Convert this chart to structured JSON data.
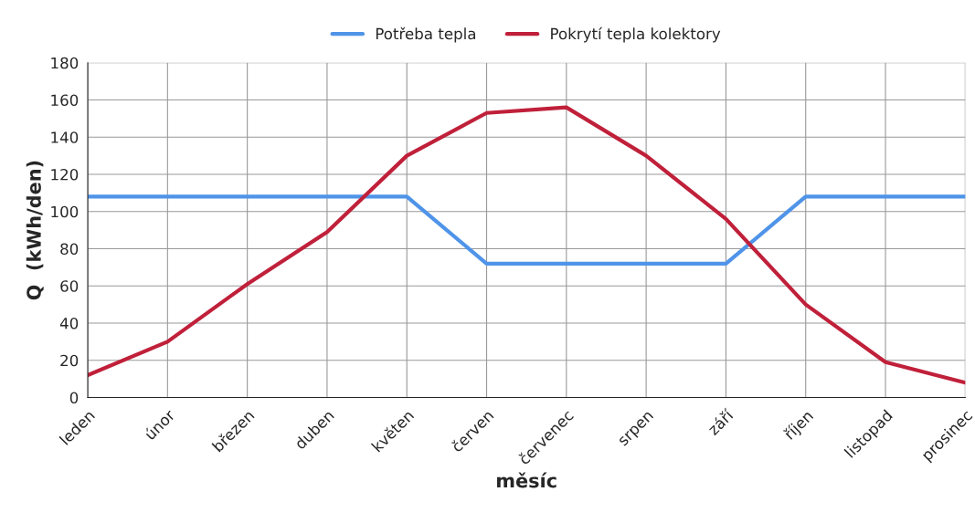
{
  "chart_data": {
    "type": "line",
    "xlabel": "měsíc",
    "ylabel": "Q  (kWh/den)",
    "categories": [
      "leden",
      "únor",
      "březen",
      "duben",
      "květen",
      "červen",
      "červenec",
      "srpen",
      "září",
      "říjen",
      "listopad",
      "prosinec"
    ],
    "series": [
      {
        "name": "Potřeba tepla",
        "color": "#4f94e8",
        "values": [
          108,
          108,
          108,
          108,
          108,
          72,
          72,
          72,
          72,
          108,
          108,
          108
        ]
      },
      {
        "name": "Pokrytí tepla kolektory",
        "color": "#c0203a",
        "values": [
          12,
          30,
          61,
          89,
          130,
          153,
          156,
          130,
          96,
          50,
          19,
          8
        ]
      }
    ],
    "ylim": [
      0,
      180
    ],
    "yticks": [
      0,
      20,
      40,
      60,
      80,
      100,
      120,
      140,
      160,
      180
    ],
    "grid": true,
    "legend": "top",
    "marker": "none",
    "line_style": "solid"
  }
}
